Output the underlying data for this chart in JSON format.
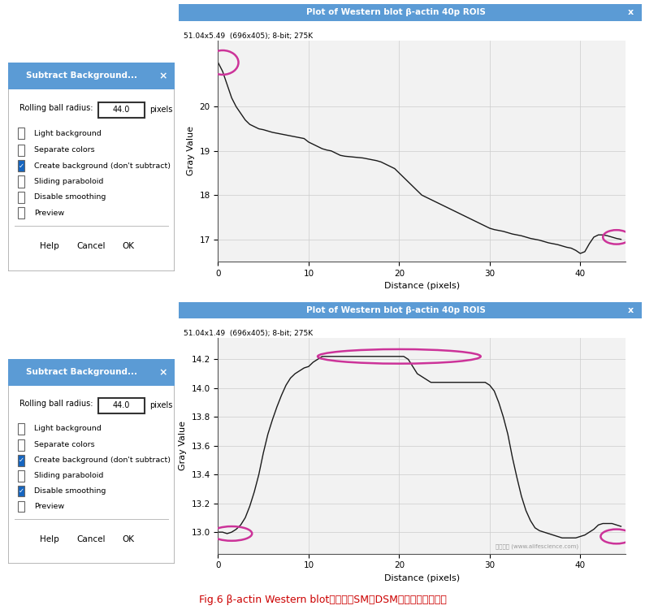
{
  "title1": "Plot of Western blot β-actin 40p ROIS",
  "title2": "Plot of Western blot β-actin 40p ROIS",
  "subtitle1": "51.04x5.49  (696x405); 8-bit; 275K",
  "subtitle2": "51.04x1.49  (696x405); 8-bit; 275K",
  "xlabel": "Distance (pixels)",
  "ylabel": "Gray Value",
  "title_bar_color": "#5b9bd5",
  "curve_color": "#1a1a1a",
  "ellipse_color": "#cc3399",
  "caption_color": "#cc0000",
  "caption_text": "Fig.6 β-actin Western blot条带选区SM、DSM组背景信号曲线图",
  "watermark": "拉助科技 (www.alifescience.com)",
  "sm_xlim": [
    0,
    45
  ],
  "sm_ylim": [
    16.5,
    21.5
  ],
  "sm_yticks": [
    17,
    18,
    19,
    20
  ],
  "sm_xticks": [
    0,
    10,
    20,
    30,
    40
  ],
  "dsm_xlim": [
    0,
    45
  ],
  "dsm_ylim": [
    12.85,
    14.35
  ],
  "dsm_yticks": [
    13.0,
    13.2,
    13.4,
    13.6,
    13.8,
    14.0,
    14.2
  ],
  "dsm_xticks": [
    0,
    10,
    20,
    30,
    40
  ],
  "sm_curve_x": [
    0,
    0.5,
    1,
    1.5,
    2,
    2.5,
    3,
    3.5,
    4,
    4.5,
    5,
    5.5,
    6,
    6.5,
    7,
    7.5,
    8,
    8.5,
    9,
    9.5,
    10,
    10.5,
    11,
    11.5,
    12,
    12.5,
    13,
    13.5,
    14,
    14.5,
    15,
    15.5,
    16,
    16.5,
    17,
    17.5,
    18,
    18.5,
    19,
    19.5,
    20,
    20.5,
    21,
    21.5,
    22,
    22.5,
    23,
    23.5,
    24,
    24.5,
    25,
    25.5,
    26,
    26.5,
    27,
    27.5,
    28,
    28.5,
    29,
    29.5,
    30,
    30.5,
    31,
    31.5,
    32,
    32.5,
    33,
    33.5,
    34,
    34.5,
    35,
    35.5,
    36,
    36.5,
    37,
    37.5,
    38,
    38.5,
    39,
    39.5,
    40,
    40.5,
    41,
    41.5,
    42,
    42.5,
    43,
    43.5,
    44,
    44.5
  ],
  "sm_curve_y": [
    21.0,
    20.8,
    20.5,
    20.2,
    20.0,
    19.85,
    19.7,
    19.6,
    19.55,
    19.5,
    19.48,
    19.45,
    19.42,
    19.4,
    19.38,
    19.36,
    19.34,
    19.32,
    19.3,
    19.28,
    19.2,
    19.15,
    19.1,
    19.05,
    19.02,
    19.0,
    18.95,
    18.9,
    18.88,
    18.87,
    18.86,
    18.85,
    18.84,
    18.82,
    18.8,
    18.78,
    18.75,
    18.7,
    18.65,
    18.6,
    18.5,
    18.4,
    18.3,
    18.2,
    18.1,
    18.0,
    17.95,
    17.9,
    17.85,
    17.8,
    17.75,
    17.7,
    17.65,
    17.6,
    17.55,
    17.5,
    17.45,
    17.4,
    17.35,
    17.3,
    17.25,
    17.22,
    17.2,
    17.18,
    17.15,
    17.12,
    17.1,
    17.08,
    17.05,
    17.02,
    17.0,
    16.98,
    16.95,
    16.92,
    16.9,
    16.88,
    16.85,
    16.82,
    16.8,
    16.75,
    16.68,
    16.72,
    16.9,
    17.05,
    17.1,
    17.1,
    17.08,
    17.05,
    17.02,
    17.0
  ],
  "dsm_curve_x": [
    0,
    0.5,
    1,
    1.5,
    2,
    2.5,
    3,
    3.5,
    4,
    4.5,
    5,
    5.5,
    6,
    6.5,
    7,
    7.5,
    8,
    8.5,
    9,
    9.5,
    10,
    10.5,
    11,
    11.5,
    12,
    12.5,
    13,
    13.5,
    14,
    14.5,
    15,
    15.5,
    16,
    16.5,
    17,
    17.5,
    18,
    18.5,
    19,
    19.5,
    20,
    20.5,
    21,
    21.5,
    22,
    22.5,
    23,
    23.5,
    24,
    24.5,
    25,
    25.5,
    26,
    26.5,
    27,
    27.5,
    28,
    28.5,
    29,
    29.5,
    30,
    30.5,
    31,
    31.5,
    32,
    32.5,
    33,
    33.5,
    34,
    34.5,
    35,
    35.5,
    36,
    36.5,
    37,
    37.5,
    38,
    38.5,
    39,
    39.5,
    40,
    40.5,
    41,
    41.5,
    42,
    42.5,
    43,
    43.5,
    44,
    44.5
  ],
  "dsm_curve_y": [
    13.0,
    13.0,
    12.99,
    13.0,
    13.02,
    13.05,
    13.1,
    13.18,
    13.28,
    13.4,
    13.55,
    13.68,
    13.78,
    13.87,
    13.95,
    14.02,
    14.07,
    14.1,
    14.12,
    14.14,
    14.15,
    14.18,
    14.2,
    14.22,
    14.22,
    14.22,
    14.22,
    14.22,
    14.22,
    14.22,
    14.22,
    14.22,
    14.22,
    14.22,
    14.22,
    14.22,
    14.22,
    14.22,
    14.22,
    14.22,
    14.22,
    14.22,
    14.2,
    14.15,
    14.1,
    14.08,
    14.06,
    14.04,
    14.04,
    14.04,
    14.04,
    14.04,
    14.04,
    14.04,
    14.04,
    14.04,
    14.04,
    14.04,
    14.04,
    14.04,
    14.02,
    13.98,
    13.9,
    13.8,
    13.68,
    13.52,
    13.38,
    13.25,
    13.15,
    13.08,
    13.03,
    13.01,
    13.0,
    12.99,
    12.98,
    12.97,
    12.96,
    12.96,
    12.96,
    12.96,
    12.97,
    12.98,
    13.0,
    13.02,
    13.05,
    13.06,
    13.06,
    13.06,
    13.05,
    13.04
  ],
  "fig_w": 7.94,
  "fig_h": 7.51,
  "fig_dpi": 100
}
